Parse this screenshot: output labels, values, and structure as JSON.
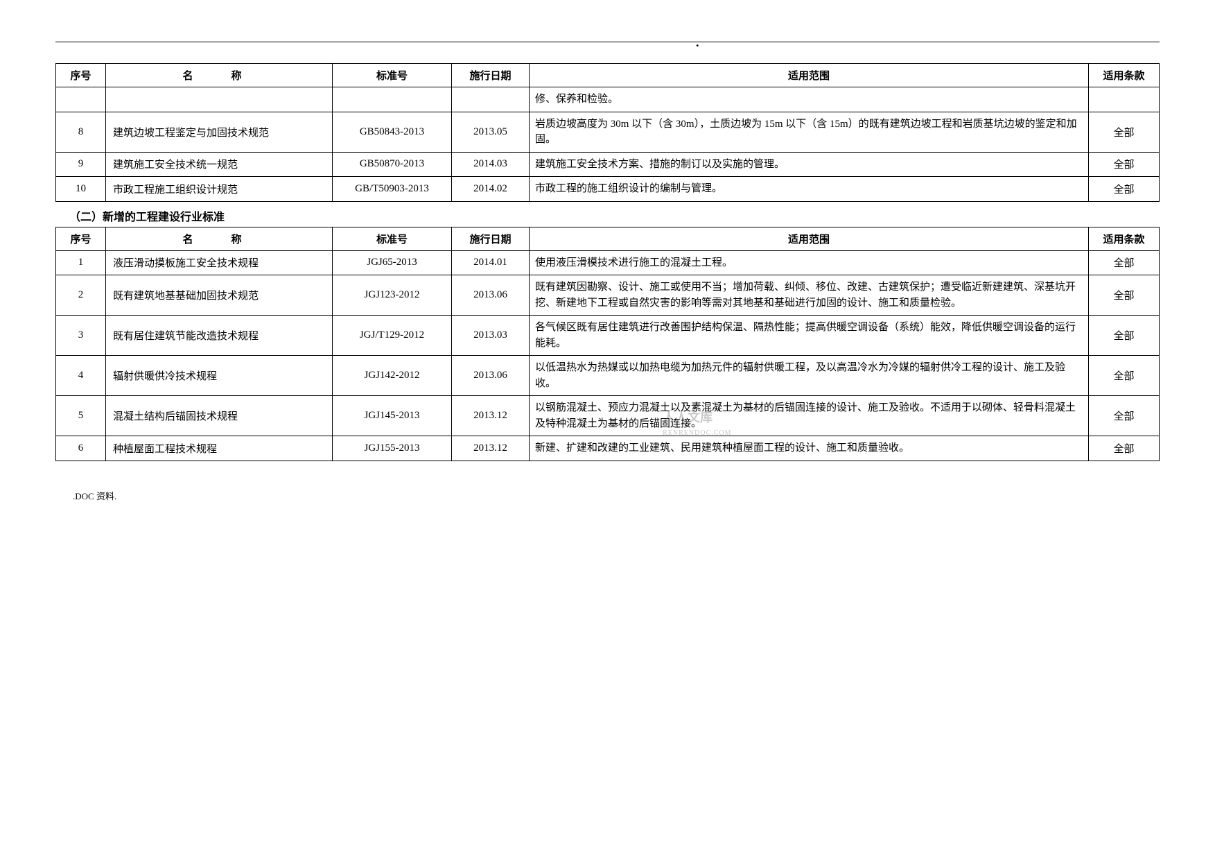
{
  "header_dot": ".",
  "table1": {
    "headers": {
      "seq": "序号",
      "name": "名　称",
      "std": "标准号",
      "date": "施行日期",
      "scope": "适用范围",
      "clause": "适用条款"
    },
    "rows": [
      {
        "seq": "",
        "name": "",
        "std": "",
        "date": "",
        "scope": "修、保养和检验。",
        "clause": ""
      },
      {
        "seq": "8",
        "name": "建筑边坡工程鉴定与加固技术规范",
        "std": "GB50843-2013",
        "date": "2013.05",
        "scope": "岩质边坡高度为 30m 以下（含 30m），土质边坡为 15m 以下（含 15m）的既有建筑边坡工程和岩质基坑边坡的鉴定和加固。",
        "clause": "全部"
      },
      {
        "seq": "9",
        "name": "建筑施工安全技术统一规范",
        "std": "GB50870-2013",
        "date": "2014.03",
        "scope": "建筑施工安全技术方案、措施的制订以及实施的管理。",
        "clause": "全部"
      },
      {
        "seq": "10",
        "name": "市政工程施工组织设计规范",
        "std": "GB/T50903-2013",
        "date": "2014.02",
        "scope": "市政工程的施工组织设计的编制与管理。",
        "clause": "全部"
      }
    ]
  },
  "section2_title": "（二）新增的工程建设行业标准",
  "table2": {
    "headers": {
      "seq": "序号",
      "name": "名　称",
      "std": "标准号",
      "date": "施行日期",
      "scope": "适用范围",
      "clause": "适用条款"
    },
    "rows": [
      {
        "seq": "1",
        "name": "液压滑动摸板施工安全技术规程",
        "std": "JGJ65-2013",
        "date": "2014.01",
        "scope": "使用液压滑模技术进行施工的混凝土工程。",
        "clause": "全部"
      },
      {
        "seq": "2",
        "name": "既有建筑地基基础加固技术规范",
        "std": "JGJ123-2012",
        "date": "2013.06",
        "scope": "既有建筑因勘察、设计、施工或使用不当；增加荷载、纠倾、移位、改建、古建筑保护；遭受临近新建建筑、深基坑开挖、新建地下工程或自然灾害的影响等需对其地基和基础进行加固的设计、施工和质量检验。",
        "clause": "全部"
      },
      {
        "seq": "3",
        "name": "既有居住建筑节能改造技术规程",
        "std": "JGJ/T129-2012",
        "date": "2013.03",
        "scope": "各气候区既有居住建筑进行改善围护结构保温、隔热性能；提高供暖空调设备（系统）能效，降低供暖空调设备的运行能耗。",
        "clause": "全部"
      },
      {
        "seq": "4",
        "name": "辐射供暖供冷技术规程",
        "std": "JGJ142-2012",
        "date": "2013.06",
        "scope": "以低温热水为热媒或以加热电缆为加热元件的辐射供暖工程，及以高温冷水为冷媒的辐射供冷工程的设计、施工及验收。",
        "clause": "全部"
      },
      {
        "seq": "5",
        "name": "混凝土结构后锚固技术规程",
        "std": "JGJ145-2013",
        "date": "2013.12",
        "scope": "以钢筋混凝土、预应力混凝土以及素混凝土为基材的后锚固连接的设计、施工及验收。不适用于以砌体、轻骨料混凝土及特种混凝土为基材的后锚固连接。",
        "clause": "全部"
      },
      {
        "seq": "6",
        "name": "种植屋面工程技术规程",
        "std": "JGJ155-2013",
        "date": "2013.12",
        "scope": "新建、扩建和改建的工业建筑、民用建筑种植屋面工程的设计、施工和质量验收。",
        "clause": "全部"
      }
    ]
  },
  "footer": ".DOC 资料.",
  "watermark": "人人文库",
  "watermark_sub": "RENRENDOC.COM"
}
